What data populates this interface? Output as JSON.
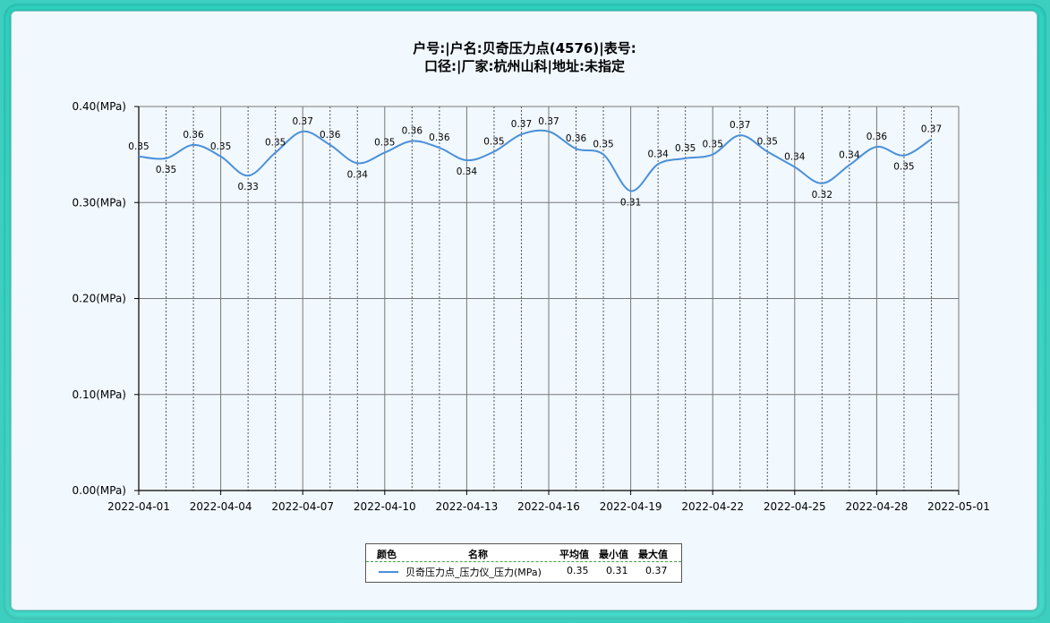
{
  "title_line1": "户号:|户名:贝奇压力点(4576)|表号:",
  "title_line2": "口径:|厂家:杭州山科|地址:未指定",
  "legend": {
    "headers": [
      "颜色",
      "名称",
      "平均值",
      "最小值",
      "最大值"
    ],
    "rows": [
      {
        "color": "#4a90d9",
        "name": "贝奇压力点_压力仪_压力(MPa)",
        "avg": "0.35",
        "min": "0.31",
        "max": "0.37"
      }
    ]
  },
  "chart_data": {
    "type": "line",
    "title": "户号:|户名:贝奇压力点(4576)|表号: 口径:|厂家:杭州山科|地址:未指定",
    "ylim": [
      0,
      0.4
    ],
    "yticks": [
      "0.00(MPa)",
      "0.10(MPa)",
      "0.20(MPa)",
      "0.30(MPa)",
      "0.40(MPa)"
    ],
    "xticks": [
      "2022-04-01",
      "2022-04-04",
      "2022-04-07",
      "2022-04-10",
      "2022-04-13",
      "2022-04-16",
      "2022-04-19",
      "2022-04-22",
      "2022-04-25",
      "2022-04-28",
      "2022-05-01"
    ],
    "x_start": "2022-04-01",
    "x_end": "2022-05-01",
    "grid": true,
    "series": [
      {
        "name": "贝奇压力点_压力仪_压力(MPa)",
        "color": "#4a90d9",
        "x": [
          "2022-04-01",
          "2022-04-02",
          "2022-04-03",
          "2022-04-04",
          "2022-04-05",
          "2022-04-06",
          "2022-04-07",
          "2022-04-08",
          "2022-04-09",
          "2022-04-10",
          "2022-04-11",
          "2022-04-12",
          "2022-04-13",
          "2022-04-14",
          "2022-04-15",
          "2022-04-16",
          "2022-04-17",
          "2022-04-18",
          "2022-04-19",
          "2022-04-20",
          "2022-04-21",
          "2022-04-22",
          "2022-04-23",
          "2022-04-24",
          "2022-04-25",
          "2022-04-26",
          "2022-04-27",
          "2022-04-28",
          "2022-04-29",
          "2022-04-30"
        ],
        "values": [
          0.348,
          0.346,
          0.36,
          0.348,
          0.328,
          0.352,
          0.374,
          0.36,
          0.341,
          0.352,
          0.364,
          0.357,
          0.344,
          0.353,
          0.371,
          0.374,
          0.356,
          0.35,
          0.312,
          0.34,
          0.346,
          0.35,
          0.37,
          0.353,
          0.337,
          0.32,
          0.339,
          0.358,
          0.349,
          0.366
        ],
        "labels": [
          "0.35",
          "0.35",
          "0.36",
          "0.35",
          "0.33",
          "0.35",
          "0.37",
          "0.36",
          "0.34",
          "0.35",
          "0.36",
          "0.36",
          "0.34",
          "0.35",
          "0.37",
          "0.37",
          "0.36",
          "0.35",
          "0.31",
          "0.34",
          "0.35",
          "0.35",
          "0.37",
          "0.35",
          "0.34",
          "0.32",
          "0.34",
          "0.36",
          "0.35",
          "0.37"
        ],
        "label_pos": [
          "above",
          "below",
          "above",
          "above",
          "below",
          "above",
          "above",
          "above",
          "below",
          "above",
          "above",
          "above",
          "below",
          "above",
          "above",
          "above",
          "above",
          "above",
          "below",
          "above",
          "above",
          "above",
          "above",
          "above",
          "above",
          "below",
          "above",
          "above",
          "below",
          "above"
        ]
      }
    ]
  }
}
